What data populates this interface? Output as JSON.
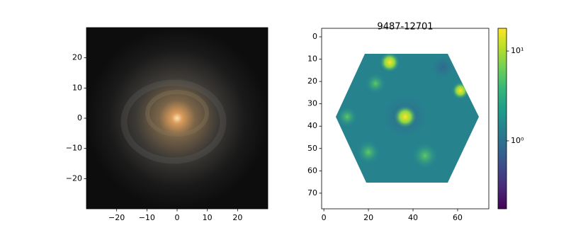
{
  "chart_data": [
    {
      "type": "image",
      "xlim": [
        -30,
        30
      ],
      "ylim": [
        -30,
        30
      ],
      "xticks": [
        {
          "value": -20,
          "label": "−20"
        },
        {
          "value": -10,
          "label": "−10"
        },
        0,
        10,
        20
      ],
      "yticks": [
        {
          "value": -20,
          "label": "−20"
        },
        {
          "value": -10,
          "label": "−10"
        },
        0,
        10,
        20
      ]
    },
    {
      "type": "image",
      "title": "9487-12701",
      "xlim": [
        -1,
        74
      ],
      "ylim": [
        77,
        -3.8
      ],
      "xticks": [
        0,
        20,
        40,
        60
      ],
      "yticks": [
        0,
        10,
        20,
        30,
        40,
        50,
        60,
        70
      ],
      "colorbar": {
        "scale": "log",
        "colormap": "viridis",
        "lim": [
          0.175,
          17.9
        ],
        "ticks": [
          {
            "value": 1,
            "label": "10⁰"
          },
          {
            "value": 10,
            "label": "10¹"
          }
        ]
      }
    }
  ]
}
